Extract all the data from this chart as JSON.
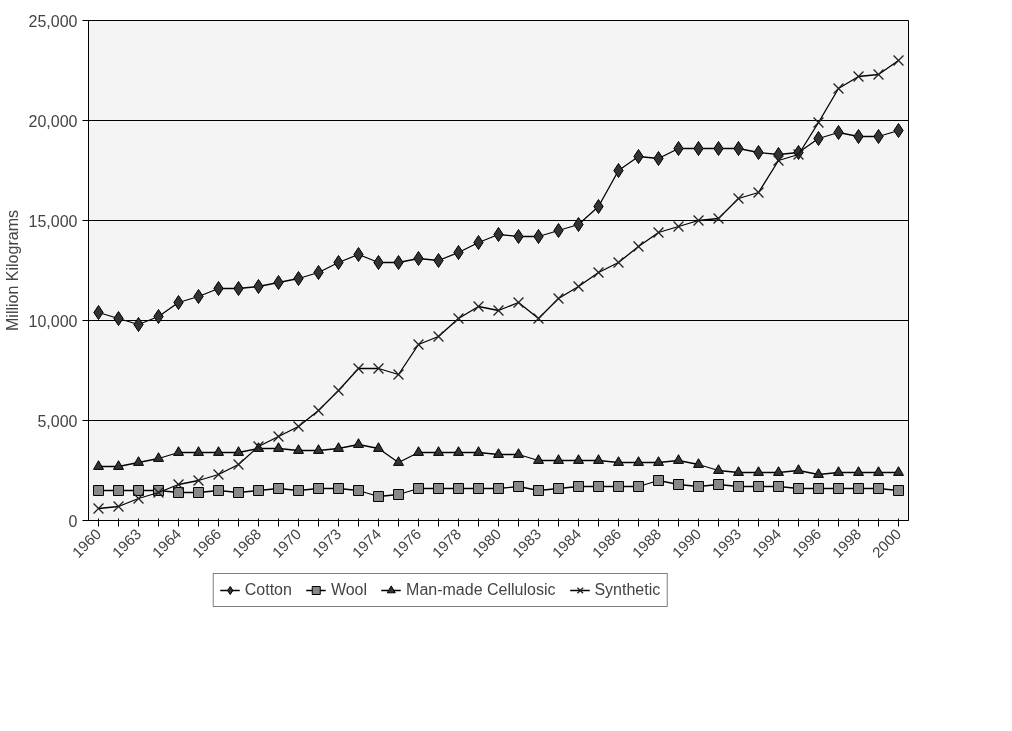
{
  "chart_data": {
    "type": "line",
    "ylabel": "Million Kilograms",
    "categories": [
      "1960",
      null,
      "1963",
      null,
      "1964",
      null,
      "1966",
      null,
      "1968",
      null,
      "1970",
      null,
      "1973",
      null,
      "1974",
      null,
      "1976",
      null,
      "1978",
      null,
      "1980",
      null,
      "1983",
      null,
      "1984",
      null,
      "1986",
      null,
      "1988",
      null,
      "1990",
      null,
      "1993",
      null,
      "1994",
      null,
      "1996",
      null,
      "1998",
      null,
      "2000"
    ],
    "series": [
      {
        "name": "Cotton",
        "color": "#333333",
        "marker": "diamond",
        "values": [
          10400,
          10100,
          9800,
          10200,
          10900,
          11200,
          11600,
          11600,
          11700,
          11900,
          12100,
          12400,
          12900,
          13300,
          12900,
          12900,
          13100,
          13000,
          13400,
          13900,
          14300,
          14200,
          14200,
          14500,
          14800,
          15700,
          17500,
          18200,
          18100,
          18600,
          18600,
          18600,
          18600,
          18400,
          18300,
          18400,
          19100,
          19400,
          19200,
          19200,
          19500
        ]
      },
      {
        "name": "Wool",
        "color": "#888888",
        "marker": "square",
        "values": [
          1500,
          1500,
          1500,
          1500,
          1400,
          1400,
          1500,
          1400,
          1500,
          1600,
          1500,
          1600,
          1600,
          1500,
          1200,
          1300,
          1600,
          1600,
          1600,
          1600,
          1600,
          1700,
          1500,
          1600,
          1700,
          1700,
          1700,
          1700,
          2000,
          1800,
          1700,
          1800,
          1700,
          1700,
          1700,
          1600,
          1600,
          1600,
          1600,
          1600,
          1500
        ]
      },
      {
        "name": "Man-made Cellulosic",
        "color": "#333333",
        "marker": "triangle",
        "values": [
          2700,
          2700,
          2900,
          3100,
          3400,
          3400,
          3400,
          3400,
          3600,
          3600,
          3500,
          3500,
          3600,
          3800,
          3600,
          2900,
          3400,
          3400,
          3400,
          3400,
          3300,
          3300,
          3000,
          3000,
          3000,
          3000,
          2900,
          2900,
          2900,
          3000,
          2800,
          2500,
          2400,
          2400,
          2400,
          2500,
          2300,
          2400,
          2400,
          2400,
          2400
        ]
      },
      {
        "name": "Synthetic",
        "color": "#222222",
        "marker": "cross",
        "values": [
          600,
          700,
          1100,
          1400,
          1800,
          2000,
          2300,
          2800,
          3700,
          4200,
          4700,
          5500,
          6500,
          7600,
          7600,
          7300,
          8800,
          9200,
          10100,
          10700,
          10500,
          10900,
          10100,
          11100,
          11700,
          12400,
          12900,
          13700,
          14400,
          14700,
          15000,
          15100,
          16100,
          16400,
          18000,
          18300,
          19900,
          21600,
          22200,
          22300,
          23000
        ]
      }
    ],
    "ylim": [
      0,
      25000
    ],
    "yticks": [
      0,
      {
        "value": 5000,
        "label": "5,000"
      },
      {
        "value": 10000,
        "label": "10,000"
      },
      {
        "value": 15000,
        "label": "15,000"
      },
      {
        "value": 20000,
        "label": "20,000"
      },
      {
        "value": 25000,
        "label": "25,000"
      }
    ],
    "grid": "y",
    "legend": "bottom",
    "line_style": "solid"
  }
}
